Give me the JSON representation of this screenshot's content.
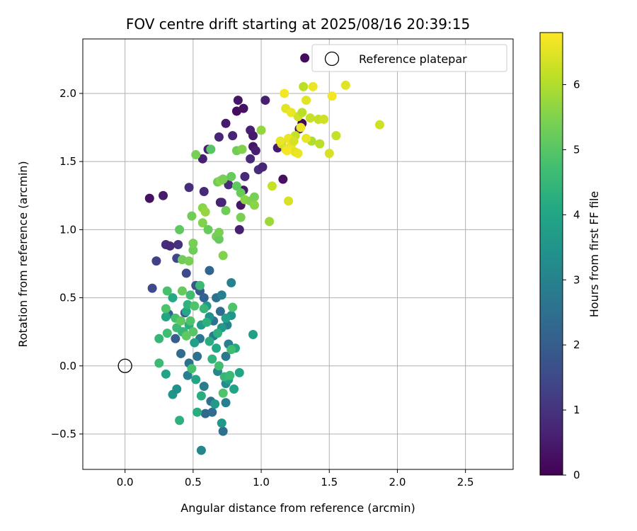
{
  "chart_data": {
    "type": "scatter",
    "title": "FOV centre drift starting at 2025/08/16 20:39:15",
    "xlabel": "Angular distance from reference (arcmin)",
    "ylabel": "Rotation from reference (arcmin)",
    "xlim": [
      -0.31,
      2.85
    ],
    "ylim": [
      -0.76,
      2.4
    ],
    "xticks": [
      0.0,
      0.5,
      1.0,
      1.5,
      2.0,
      2.5
    ],
    "xtick_labels": [
      "0.0",
      "0.5",
      "1.0",
      "1.5",
      "2.0",
      "2.5"
    ],
    "yticks": [
      -0.5,
      0.0,
      0.5,
      1.0,
      1.5,
      2.0
    ],
    "ytick_labels": [
      "−0.5",
      "0.0",
      "0.5",
      "1.0",
      "1.5",
      "2.0"
    ],
    "grid": true,
    "colormap": "viridis",
    "colorbar": {
      "label": "Hours from first FF file",
      "range": [
        0,
        6.8
      ],
      "ticks": [
        0,
        1,
        2,
        3,
        4,
        5,
        6
      ],
      "tick_labels": [
        "0",
        "1",
        "2",
        "3",
        "4",
        "5",
        "6"
      ]
    },
    "legend": {
      "placement": "top-right",
      "entries": [
        {
          "label": "Reference platepar",
          "marker": "open-circle"
        }
      ]
    },
    "reference_point": {
      "x": 0.0,
      "y": 0.0,
      "name": "Reference platepar"
    },
    "points": [
      [
        0.18,
        1.23,
        0.3
      ],
      [
        0.28,
        1.25,
        0.5
      ],
      [
        0.3,
        0.89,
        0.9
      ],
      [
        0.33,
        0.88,
        0.8
      ],
      [
        0.39,
        0.89,
        1.0
      ],
      [
        0.47,
        1.31,
        0.9
      ],
      [
        0.58,
        1.28,
        0.8
      ],
      [
        0.57,
        1.52,
        0.6
      ],
      [
        0.61,
        1.59,
        0.6
      ],
      [
        0.69,
        1.68,
        0.7
      ],
      [
        0.74,
        1.78,
        0.5
      ],
      [
        0.79,
        1.69,
        0.7
      ],
      [
        0.83,
        1.95,
        0.4
      ],
      [
        0.82,
        1.87,
        0.2
      ],
      [
        0.87,
        1.89,
        0.3
      ],
      [
        0.92,
        1.73,
        0.6
      ],
      [
        0.94,
        1.69,
        0.5
      ],
      [
        0.94,
        1.61,
        0.4
      ],
      [
        0.96,
        1.58,
        0.6
      ],
      [
        0.92,
        1.52,
        0.8
      ],
      [
        0.98,
        1.44,
        0.9
      ],
      [
        1.01,
        1.46,
        0.7
      ],
      [
        1.03,
        1.95,
        0.6
      ],
      [
        0.88,
        1.39,
        0.8
      ],
      [
        0.87,
        1.29,
        0.5
      ],
      [
        0.85,
        1.18,
        0.4
      ],
      [
        0.84,
        1.0,
        0.6
      ],
      [
        0.72,
        1.37,
        0.9
      ],
      [
        0.76,
        1.33,
        0.8
      ],
      [
        0.7,
        1.2,
        0.6
      ],
      [
        0.71,
        1.2,
        0.7
      ],
      [
        1.16,
        1.37,
        0.3
      ],
      [
        1.12,
        1.6,
        0.5
      ],
      [
        1.28,
        1.74,
        0.3
      ],
      [
        1.3,
        1.78,
        0.1
      ],
      [
        1.32,
        2.26,
        0.2
      ],
      [
        0.2,
        0.57,
        1.5
      ],
      [
        0.23,
        0.77,
        1.3
      ],
      [
        0.38,
        0.79,
        1.4
      ],
      [
        0.45,
        0.68,
        1.5
      ],
      [
        0.52,
        0.59,
        1.8
      ],
      [
        0.55,
        0.55,
        1.9
      ],
      [
        0.58,
        0.5,
        2.1
      ],
      [
        0.62,
        0.7,
        2.2
      ],
      [
        0.67,
        0.5,
        2.6
      ],
      [
        0.71,
        0.52,
        2.9
      ],
      [
        0.78,
        0.61,
        3.0
      ],
      [
        0.44,
        0.39,
        1.9
      ],
      [
        0.32,
        0.38,
        2.2
      ],
      [
        0.37,
        0.2,
        2.0
      ],
      [
        0.41,
        0.09,
        2.4
      ],
      [
        0.47,
        0.02,
        2.6
      ],
      [
        0.46,
        -0.07,
        2.9
      ],
      [
        0.53,
        0.07,
        2.5
      ],
      [
        0.55,
        0.2,
        2.7
      ],
      [
        0.65,
        0.22,
        2.8
      ],
      [
        0.65,
        0.33,
        2.6
      ],
      [
        0.7,
        0.4,
        2.4
      ],
      [
        0.75,
        0.3,
        3.0
      ],
      [
        0.76,
        0.16,
        2.9
      ],
      [
        0.74,
        0.07,
        2.7
      ],
      [
        0.68,
        -0.04,
        3.1
      ],
      [
        0.58,
        -0.15,
        2.8
      ],
      [
        0.63,
        -0.26,
        2.5
      ],
      [
        0.59,
        -0.35,
        2.3
      ],
      [
        0.64,
        -0.34,
        2.4
      ],
      [
        0.72,
        -0.48,
        2.5
      ],
      [
        0.74,
        -0.27,
        2.9
      ],
      [
        0.56,
        -0.62,
        3.1
      ],
      [
        0.35,
        -0.21,
        3.5
      ],
      [
        0.38,
        -0.17,
        3.4
      ],
      [
        0.4,
        -0.4,
        4.3
      ],
      [
        0.53,
        -0.34,
        4.2
      ],
      [
        0.66,
        -0.28,
        3.7
      ],
      [
        0.71,
        -0.42,
        3.6
      ],
      [
        0.74,
        -0.13,
        3.3
      ],
      [
        0.76,
        -0.1,
        3.8
      ],
      [
        0.8,
        -0.17,
        3.9
      ],
      [
        0.84,
        -0.05,
        4.0
      ],
      [
        0.94,
        0.23,
        3.8
      ],
      [
        0.81,
        0.13,
        4.1
      ],
      [
        0.78,
        0.37,
        3.5
      ],
      [
        0.74,
        0.35,
        3.9
      ],
      [
        0.71,
        0.28,
        3.7
      ],
      [
        0.68,
        0.24,
        4.3
      ],
      [
        0.62,
        0.36,
        3.4
      ],
      [
        0.6,
        0.44,
        3.6
      ],
      [
        0.56,
        0.3,
        3.7
      ],
      [
        0.51,
        0.17,
        3.8
      ],
      [
        0.47,
        0.3,
        4.2
      ],
      [
        0.45,
        0.4,
        4.1
      ],
      [
        0.42,
        0.25,
        4.4
      ],
      [
        0.38,
        0.28,
        4.6
      ],
      [
        0.37,
        0.35,
        4.8
      ],
      [
        0.35,
        0.5,
        4.1
      ],
      [
        0.3,
        0.36,
        4.0
      ],
      [
        0.31,
        0.24,
        4.7
      ],
      [
        0.3,
        0.42,
        4.9
      ],
      [
        0.31,
        0.55,
        4.8
      ],
      [
        0.25,
        0.2,
        4.5
      ],
      [
        0.25,
        0.02,
        4.6
      ],
      [
        0.3,
        -0.06,
        3.9
      ],
      [
        0.43,
        0.25,
        4.5
      ],
      [
        0.46,
        0.45,
        4.4
      ],
      [
        0.48,
        0.52,
        4.7
      ],
      [
        0.51,
        0.44,
        4.9
      ],
      [
        0.55,
        0.59,
        4.6
      ],
      [
        0.58,
        0.42,
        4.5
      ],
      [
        0.6,
        0.32,
        4.3
      ],
      [
        0.62,
        0.18,
        4.2
      ],
      [
        0.64,
        0.05,
        4.4
      ],
      [
        0.67,
        0.13,
        4.1
      ],
      [
        0.69,
        0.0,
        4.7
      ],
      [
        0.72,
        -0.2,
        4.9
      ],
      [
        0.73,
        -0.08,
        4.5
      ],
      [
        0.77,
        -0.07,
        4.6
      ],
      [
        0.78,
        0.12,
        4.7
      ],
      [
        0.79,
        0.43,
        4.9
      ],
      [
        0.52,
        -0.1,
        4.0
      ],
      [
        0.56,
        -0.22,
        4.2
      ],
      [
        0.49,
        -0.02,
        4.8
      ],
      [
        0.5,
        0.25,
        5.0
      ],
      [
        0.48,
        0.33,
        4.9
      ],
      [
        0.45,
        0.22,
        5.1
      ],
      [
        0.41,
        0.33,
        5.1
      ],
      [
        0.42,
        0.55,
        5.2
      ],
      [
        0.4,
        1.0,
        5.1
      ],
      [
        0.42,
        0.78,
        5.3
      ],
      [
        0.47,
        0.77,
        5.4
      ],
      [
        0.5,
        0.85,
        5.3
      ],
      [
        0.5,
        0.9,
        5.4
      ],
      [
        0.49,
        1.1,
        5.3
      ],
      [
        0.52,
        1.55,
        5.4
      ],
      [
        0.57,
        1.16,
        5.6
      ],
      [
        0.57,
        1.05,
        5.5
      ],
      [
        0.59,
        1.13,
        5.7
      ],
      [
        0.61,
        1.0,
        5.2
      ],
      [
        0.63,
        1.59,
        5.0
      ],
      [
        0.67,
        0.95,
        5.4
      ],
      [
        0.69,
        0.93,
        5.2
      ],
      [
        0.69,
        0.98,
        5.4
      ],
      [
        0.72,
        0.81,
        5.5
      ],
      [
        0.68,
        1.35,
        5.3
      ],
      [
        0.7,
        1.36,
        5.6
      ],
      [
        0.72,
        1.37,
        5.4
      ],
      [
        0.74,
        1.14,
        5.3
      ],
      [
        0.78,
        1.39,
        5.2
      ],
      [
        0.82,
        1.32,
        5.1
      ],
      [
        0.82,
        1.58,
        5.3
      ],
      [
        0.85,
        1.27,
        5.2
      ],
      [
        0.86,
        1.59,
        5.5
      ],
      [
        0.85,
        1.09,
        5.4
      ],
      [
        0.88,
        1.22,
        5.6
      ],
      [
        0.92,
        1.21,
        5.5
      ],
      [
        0.95,
        1.24,
        5.4
      ],
      [
        0.95,
        1.18,
        5.6
      ],
      [
        1.0,
        1.73,
        5.7
      ],
      [
        1.06,
        1.06,
        5.8
      ],
      [
        1.08,
        1.32,
        6.2
      ],
      [
        1.15,
        1.63,
        6.3
      ],
      [
        1.18,
        1.59,
        6.5
      ],
      [
        1.2,
        1.21,
        6.4
      ],
      [
        1.22,
        1.62,
        6.6
      ],
      [
        1.25,
        1.57,
        6.5
      ],
      [
        1.25,
        1.69,
        6.2
      ],
      [
        1.27,
        1.83,
        6.3
      ],
      [
        1.3,
        1.86,
        6.1
      ],
      [
        1.33,
        1.95,
        6.5
      ],
      [
        1.36,
        1.82,
        6.2
      ],
      [
        1.37,
        1.65,
        6.0
      ],
      [
        1.38,
        2.05,
        6.6
      ],
      [
        1.42,
        1.81,
        6.2
      ],
      [
        1.43,
        1.63,
        6.1
      ],
      [
        1.46,
        1.81,
        6.3
      ],
      [
        1.5,
        1.56,
        6.4
      ],
      [
        1.52,
        1.98,
        6.7
      ],
      [
        1.55,
        1.69,
        6.2
      ],
      [
        1.62,
        2.06,
        6.5
      ],
      [
        1.87,
        1.77,
        6.3
      ],
      [
        1.17,
        2.0,
        6.7
      ],
      [
        1.2,
        1.67,
        6.6
      ],
      [
        1.24,
        1.65,
        6.4
      ],
      [
        1.29,
        1.75,
        6.6
      ],
      [
        1.31,
        2.05,
        6.1
      ],
      [
        1.33,
        1.67,
        6.6
      ],
      [
        1.18,
        1.89,
        6.5
      ],
      [
        1.22,
        1.86,
        6.6
      ],
      [
        1.14,
        1.65,
        6.6
      ],
      [
        1.19,
        1.58,
        6.7
      ],
      [
        1.27,
        1.56,
        6.6
      ]
    ]
  }
}
